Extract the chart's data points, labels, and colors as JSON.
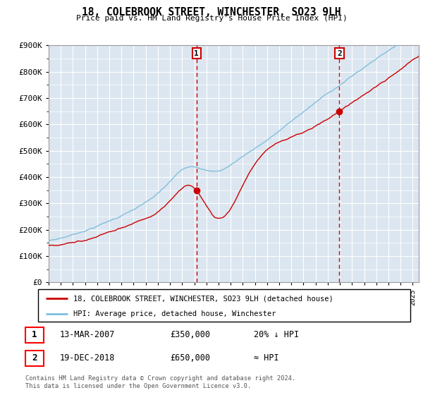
{
  "title": "18, COLEBROOK STREET, WINCHESTER, SO23 9LH",
  "subtitle": "Price paid vs. HM Land Registry's House Price Index (HPI)",
  "ylabel_ticks": [
    "£0",
    "£100K",
    "£200K",
    "£300K",
    "£400K",
    "£500K",
    "£600K",
    "£700K",
    "£800K",
    "£900K"
  ],
  "ylim": [
    0,
    900000
  ],
  "xlim_start": 1995.0,
  "xlim_end": 2025.5,
  "background_color": "#ffffff",
  "plot_bg_color": "#dce6f0",
  "grid_color": "#ffffff",
  "hpi_color": "#7fbfdf",
  "price_color": "#cc0000",
  "marker1_x": 2007.19,
  "marker1_y": 350000,
  "marker2_x": 2018.96,
  "marker2_y": 650000,
  "legend_line1": "18, COLEBROOK STREET, WINCHESTER, SO23 9LH (detached house)",
  "legend_line2": "HPI: Average price, detached house, Winchester",
  "annotation1_label": "1",
  "annotation1_date": "13-MAR-2007",
  "annotation1_price": "£350,000",
  "annotation1_hpi": "20% ↓ HPI",
  "annotation2_label": "2",
  "annotation2_date": "19-DEC-2018",
  "annotation2_price": "£650,000",
  "annotation2_hpi": "≈ HPI",
  "footer": "Contains HM Land Registry data © Crown copyright and database right 2024.\nThis data is licensed under the Open Government Licence v3.0."
}
